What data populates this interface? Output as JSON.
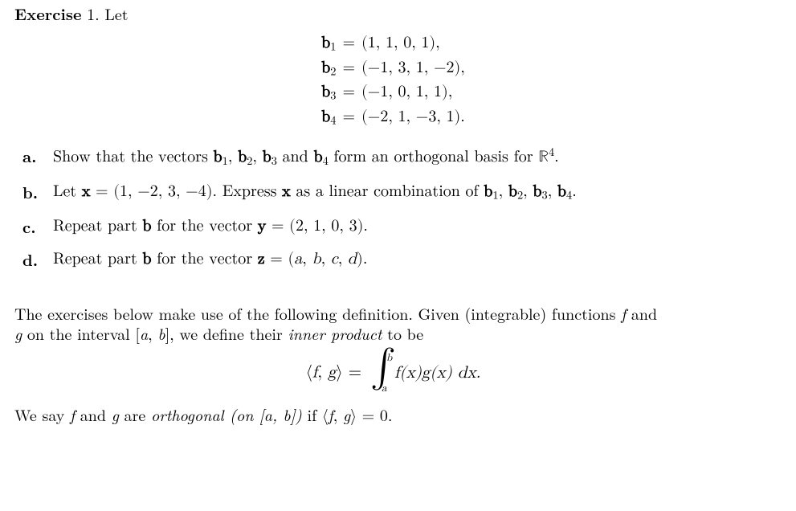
{
  "exercise_label": "Exercise",
  "exercise_number": "1.",
  "let_word": "Let",
  "vectors": [
    {
      "name": "b",
      "sub": "1",
      "value": "(1, 1, 0, 1),"
    },
    {
      "name": "b",
      "sub": "2",
      "value": "(−1, 3, 1, −2),"
    },
    {
      "name": "b",
      "sub": "3",
      "value": "(−1, 0, 1, 1),"
    },
    {
      "name": "b",
      "sub": "4",
      "value": "(−2, 1, −3, 1)."
    }
  ],
  "parts": {
    "a": {
      "label": "a.",
      "pre": "Show that the vectors ",
      "list_prefix": "b",
      "s1": "1",
      "s2": "2",
      "s3": "3",
      "and": " and ",
      "s4": "4",
      "post": " form an orthogonal basis for ",
      "space": "ℝ",
      "exp": "4",
      "end": "."
    },
    "b": {
      "label": "b.",
      "pre": "Let ",
      "xname": "x",
      "eq": " = (1, −2, 3, −4). Express ",
      "xname2": "x",
      "mid": " as a linear combination of ",
      "bsym": "b",
      "s1": "1",
      "s2": "2",
      "s3": "3",
      "s4": "4",
      "end": "."
    },
    "c": {
      "label": "c.",
      "pre": "Repeat part ",
      "bold_b": "b",
      "mid": " for the vector ",
      "yname": "y",
      "val": " = (2, 1, 0, 3)."
    },
    "d": {
      "label": "d.",
      "pre": "Repeat part ",
      "bold_b": "b",
      "mid": " for the vector ",
      "zname": "z",
      "val": " = (",
      "a": "a",
      "b": "b",
      "c": "c",
      "d": "d",
      "end": ")."
    }
  },
  "def_para1_a": "The exercises below make use of the following definition. Given (integrable) functions ",
  "f": "f",
  "def_para1_b": " and",
  "g": "g",
  "def_para2_a": " on the interval [",
  "iva": "a",
  "comma": ", ",
  "ivb": "b",
  "def_para2_b": "], we define their ",
  "inner_product_word": "inner product",
  "def_para2_c": " to be",
  "int_lo": "a",
  "int_hi": "b",
  "integrand": "f(x)g(x) dx.",
  "ip_lhs_open": "⟨",
  "ip_f": "f",
  "ip_sep": ", ",
  "ip_g": "g",
  "ip_lhs_close": "⟩",
  "eq_sign": " = ",
  "lastline_a": "We say ",
  "lastline_b": " and ",
  "lastline_c": " are ",
  "orth_phrase": "orthogonal (on ",
  "orth_open": "[",
  "orth_close": "])",
  "lastline_d": " if ",
  "zero": " = 0."
}
